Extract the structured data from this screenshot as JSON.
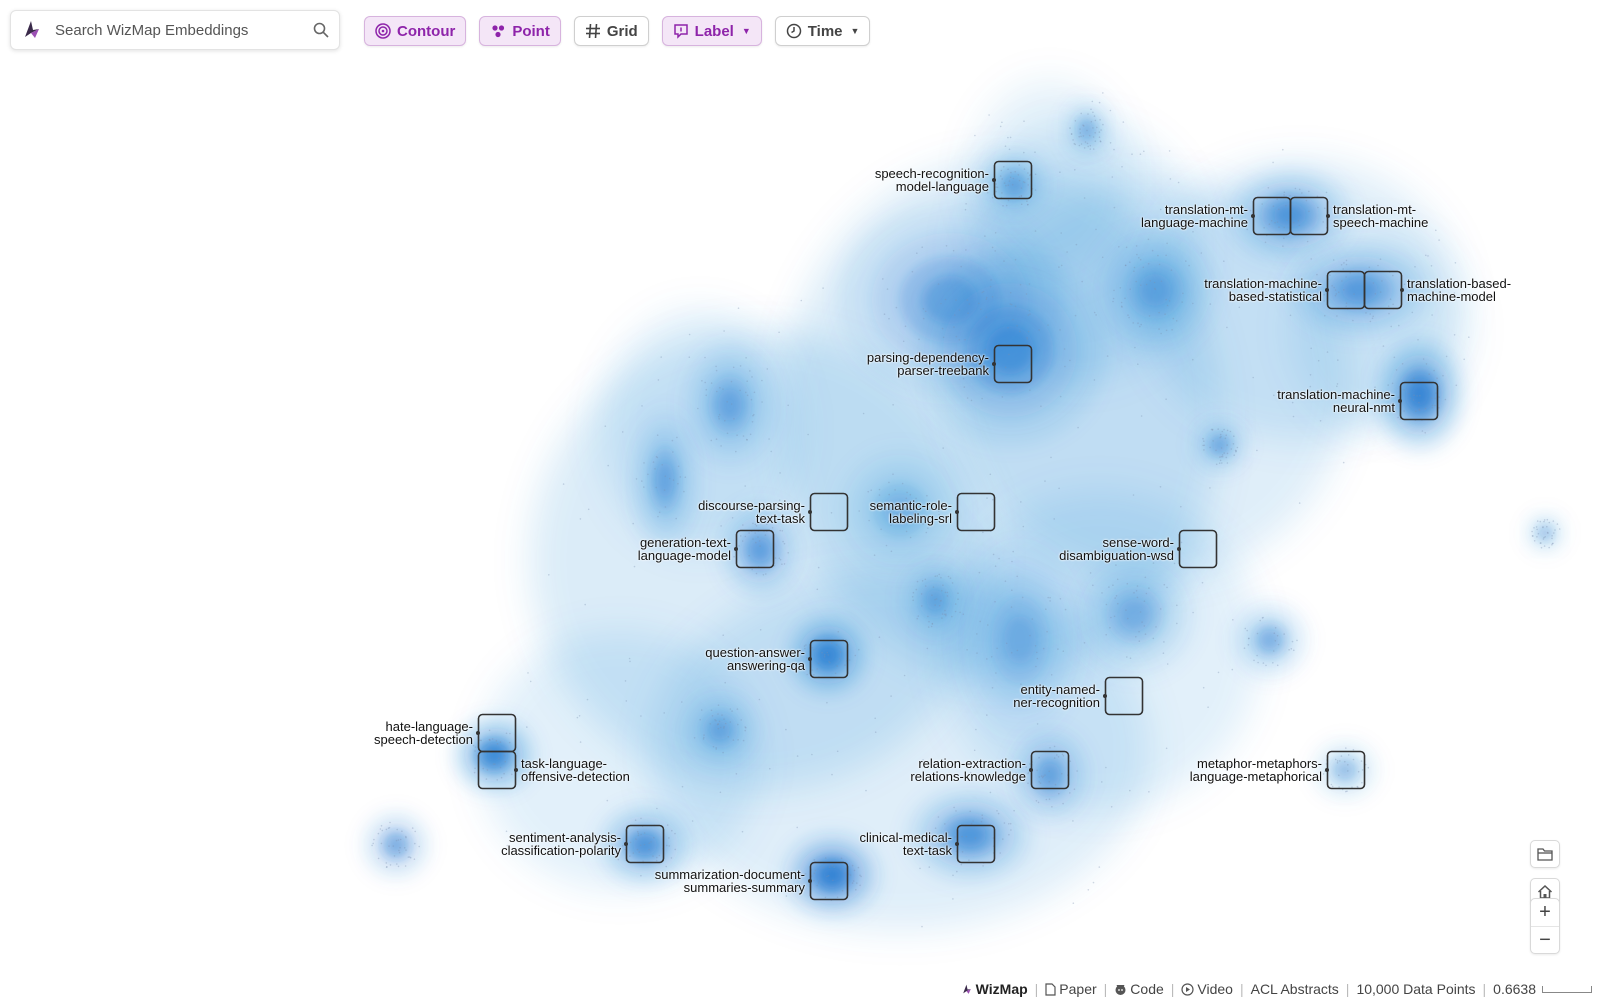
{
  "search": {
    "placeholder": "Search WizMap Embeddings"
  },
  "toolbar": {
    "contour": "Contour",
    "point": "Point",
    "grid": "Grid",
    "label": "Label",
    "time": "Time"
  },
  "colors": {
    "accent": "#8e24aa",
    "density": "#1f77d0"
  },
  "labels": [
    {
      "text": "speech-recognition-\nmodel-language",
      "side": "left"
    },
    {
      "text": "translation-mt-\nlanguage-machine",
      "side": "left"
    },
    {
      "text": "translation-mt-\nspeech-machine",
      "side": "right"
    },
    {
      "text": "translation-machine-\nbased-statistical",
      "side": "left"
    },
    {
      "text": "translation-based-\nmachine-model",
      "side": "right"
    },
    {
      "text": "parsing-dependency-\nparser-treebank",
      "side": "left"
    },
    {
      "text": "translation-machine-\nneural-nmt",
      "side": "left"
    },
    {
      "text": "discourse-parsing-\ntext-task",
      "side": "left"
    },
    {
      "text": "semantic-role-\nlabeling-srl",
      "side": "left"
    },
    {
      "text": "generation-text-\nlanguage-model",
      "side": "left"
    },
    {
      "text": "sense-word-\ndisambiguation-wsd",
      "side": "left"
    },
    {
      "text": "question-answer-\nanswering-qa",
      "side": "left"
    },
    {
      "text": "entity-named-\nner-recognition",
      "side": "left"
    },
    {
      "text": "hate-language-\nspeech-detection",
      "side": "left"
    },
    {
      "text": "task-language-\noffensive-detection",
      "side": "right"
    },
    {
      "text": "relation-extraction-\nrelations-knowledge",
      "side": "left"
    },
    {
      "text": "metaphor-metaphors-\nlanguage-metaphorical",
      "side": "left"
    },
    {
      "text": "sentiment-analysis-\nclassification-polarity",
      "side": "left"
    },
    {
      "text": "clinical-medical-\ntext-task",
      "side": "left"
    },
    {
      "text": "summarization-document-\nsummaries-summary",
      "side": "left"
    }
  ],
  "footer": {
    "brand": "WizMap",
    "paper": "Paper",
    "code": "Code",
    "video": "Video",
    "dataset": "ACL Abstracts",
    "points": "10,000 Data Points",
    "zoom": "0.6638"
  }
}
